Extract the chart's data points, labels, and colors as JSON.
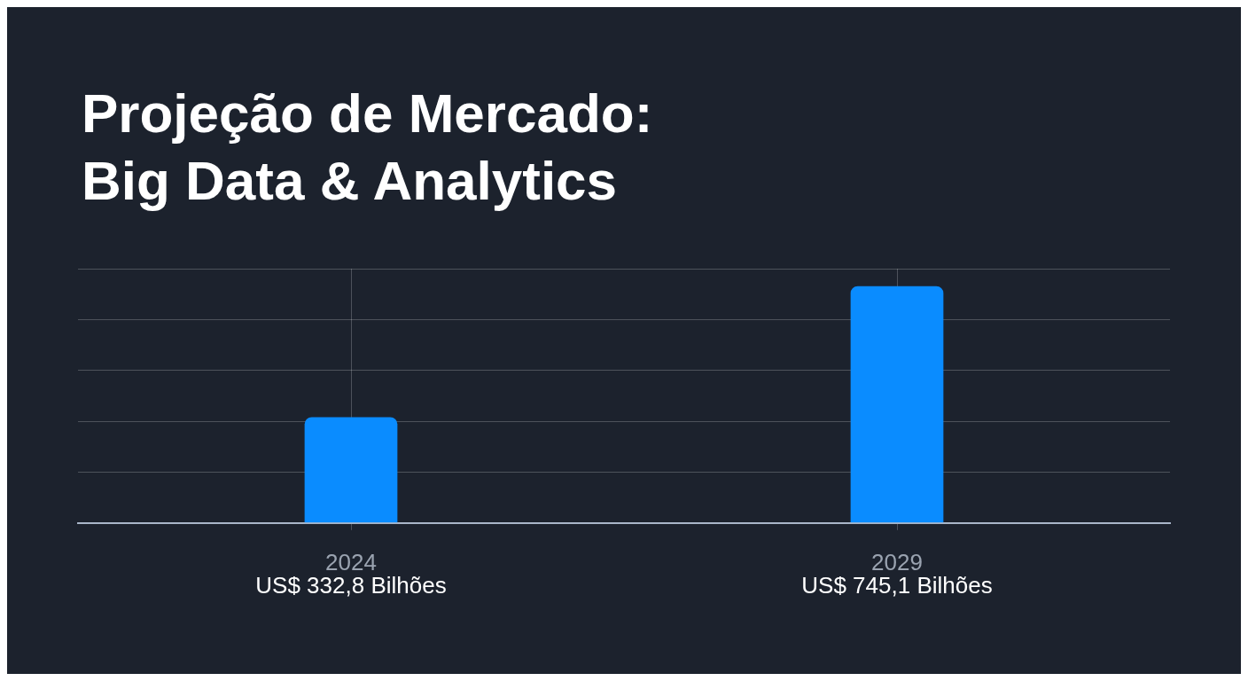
{
  "chart_data": {
    "type": "bar",
    "title": "Projeção de Mercado:\nBig Data & Analytics",
    "categories": [
      "2024",
      "2029"
    ],
    "values": [
      332.8,
      745.1
    ],
    "color": "#0a8cff",
    "value_labels": [
      "US$ 332,8 Bilhões",
      "US$ 745,1 Bilhões"
    ],
    "grid": true,
    "tick_labels": "x",
    "legend": false
  }
}
